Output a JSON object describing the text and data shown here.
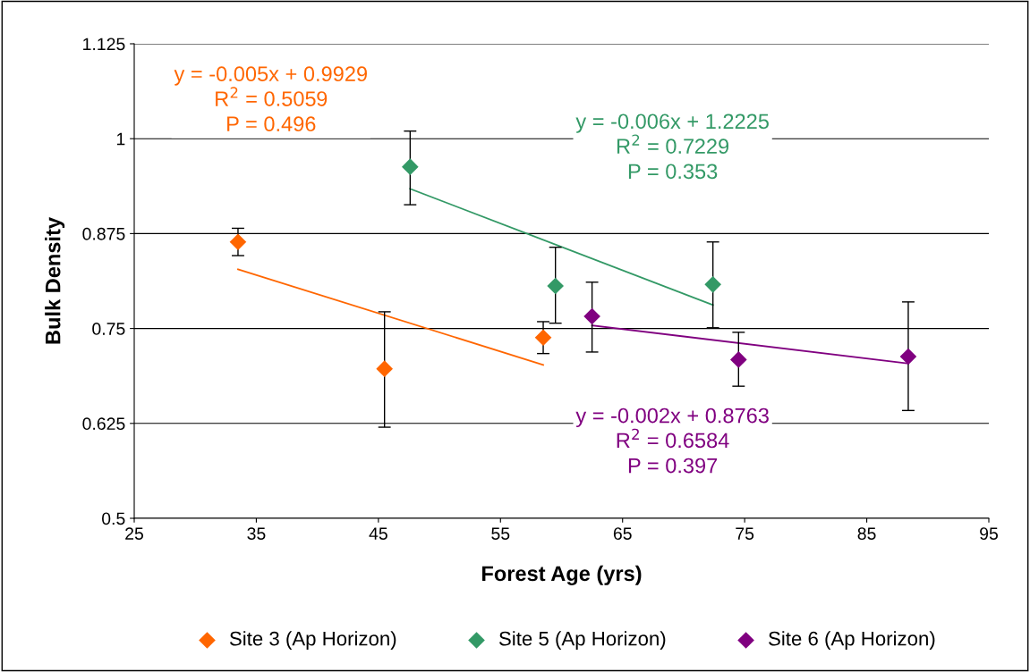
{
  "chart_data": {
    "type": "scatter",
    "xlabel": "Forest Age (yrs)",
    "ylabel": "Bulk Density",
    "xlim": [
      25,
      95
    ],
    "xticks": [
      25,
      35,
      45,
      55,
      65,
      75,
      85,
      95
    ],
    "ylim": [
      0.5,
      1.125
    ],
    "yticks": [
      0.5,
      0.625,
      0.75,
      0.875,
      1,
      1.125
    ],
    "grid": "y",
    "legend": "bottom",
    "marker": "diamond",
    "series": [
      {
        "name": "Site 3 (Ap Horizon)",
        "color": "#ff6600",
        "x": [
          33.5,
          45.5,
          58.5
        ],
        "values": [
          0.864,
          0.697,
          0.738
        ],
        "errors": [
          [
            0.846,
            0.882
          ],
          [
            0.62,
            0.772
          ],
          [
            0.717,
            0.759
          ]
        ]
      },
      {
        "name": "Site 5 (Ap Horizon)",
        "color": "#339966",
        "x": [
          47.6,
          59.5,
          72.4
        ],
        "values": [
          0.963,
          0.806,
          0.808
        ],
        "errors": [
          [
            0.913,
            1.01
          ],
          [
            0.757,
            0.857
          ],
          [
            0.751,
            0.864
          ]
        ]
      },
      {
        "name": "Site 6 (Ap Horizon)",
        "color": "#800080",
        "x": [
          62.5,
          74.5,
          88.4
        ],
        "values": [
          0.766,
          0.709,
          0.713
        ],
        "errors": [
          [
            0.719,
            0.811
          ],
          [
            0.674,
            0.745
          ],
          [
            0.642,
            0.785
          ]
        ]
      },
      {
        "type": "line",
        "color": "#ff6600",
        "x": [
          33.5,
          58.5
        ],
        "values": [
          0.828,
          0.702
        ],
        "marker": "none"
      },
      {
        "type": "line",
        "color": "#339966",
        "x": [
          47.6,
          72.4
        ],
        "values": [
          0.934,
          0.781
        ],
        "marker": "none"
      },
      {
        "type": "line",
        "color": "#800080",
        "x": [
          62.5,
          88.4
        ],
        "values": [
          0.754,
          0.704
        ],
        "marker": "none"
      }
    ],
    "annotations": [
      "y = -0.005x + 0.9929\nR$^{2}$ = 0.5059\nP = 0.496",
      "y = -0.006x + 1.2225\nR$^{2}$ = 0.7229\nP = 0.353",
      "y = -0.002x + 0.8763\nR$^{2}$ = 0.6584\nP = 0.397"
    ]
  }
}
